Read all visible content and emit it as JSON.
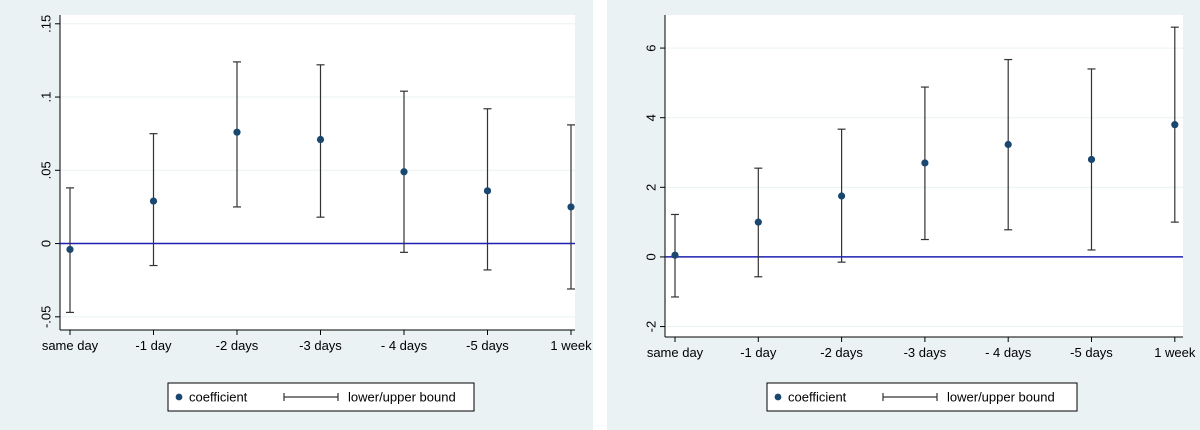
{
  "chart_data": [
    {
      "type": "scatter",
      "categories": [
        "same day",
        "-1 day",
        "-2 days",
        "-3 days",
        "- 4 days",
        "-5 days",
        "1 week"
      ],
      "series": [
        {
          "name": "coefficient",
          "values": [
            -0.004,
            0.029,
            0.076,
            0.071,
            0.049,
            0.036,
            0.025
          ]
        },
        {
          "name": "lower/upper bound",
          "lower": [
            -0.047,
            -0.015,
            0.025,
            0.018,
            -0.006,
            -0.018,
            -0.031
          ],
          "upper": [
            0.038,
            0.075,
            0.124,
            0.122,
            0.104,
            0.092,
            0.081
          ]
        }
      ],
      "yticks": [
        -0.05,
        0,
        0.05,
        0.1,
        0.15
      ],
      "ytick_labels": [
        "-.05",
        "0",
        ".05",
        ".1",
        ".15"
      ],
      "ylim": [
        -0.059,
        0.156
      ],
      "reference_line": 0,
      "colors": {
        "points": "#1a476f",
        "reference": "#1f1fb4",
        "background": "#eaf2f3"
      },
      "grid": true,
      "legend_position": "bottom-center",
      "legend": {
        "point_label": "coefficient",
        "range_label": "lower/upper bound"
      }
    },
    {
      "type": "scatter",
      "categories": [
        "same day",
        "-1 day",
        "-2 days",
        "-3 days",
        "- 4 days",
        "-5 days",
        "1 week"
      ],
      "series": [
        {
          "name": "coefficient",
          "values": [
            0.05,
            1.0,
            1.75,
            2.7,
            3.23,
            2.8,
            3.8
          ]
        },
        {
          "name": "lower/upper bound",
          "lower": [
            -1.15,
            -0.57,
            -0.15,
            0.5,
            0.78,
            0.2,
            1.0
          ],
          "upper": [
            1.22,
            2.55,
            3.67,
            4.88,
            5.67,
            5.4,
            6.6
          ]
        }
      ],
      "yticks": [
        -2,
        0,
        2,
        4,
        6
      ],
      "ytick_labels": [
        "-2",
        "0",
        "2",
        "4",
        "6"
      ],
      "ylim": [
        -2.3,
        6.95
      ],
      "reference_line": 0,
      "colors": {
        "points": "#1a476f",
        "reference": "#1f1fb4",
        "background": "#eaf2f3"
      },
      "grid": true,
      "legend_position": "bottom-center",
      "legend": {
        "point_label": "coefficient",
        "range_label": "lower/upper bound"
      }
    }
  ]
}
